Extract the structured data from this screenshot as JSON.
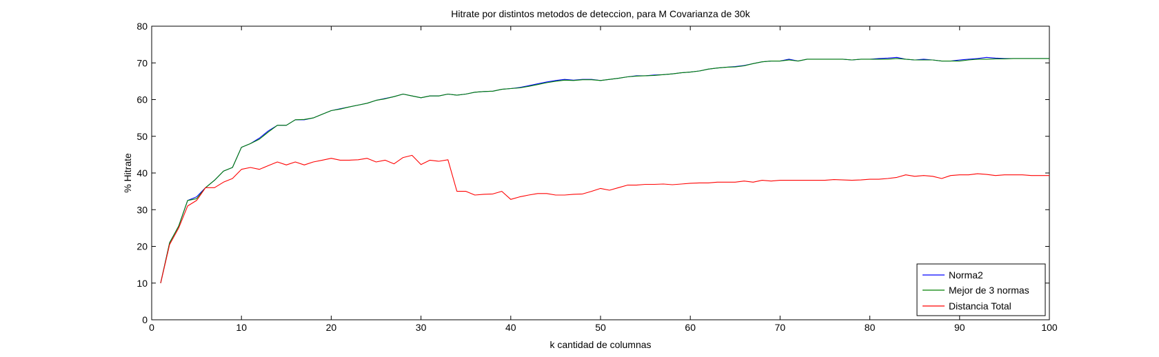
{
  "chart_data": {
    "type": "line",
    "title": "Hitrate por distintos metodos de deteccion, para M Covarianza de 30k",
    "xlabel": "k cantidad de columnas",
    "ylabel": "% Hitrate",
    "xlim": [
      0,
      100
    ],
    "ylim": [
      0,
      80
    ],
    "xticks": [
      0,
      10,
      20,
      30,
      40,
      50,
      60,
      70,
      80,
      90,
      100
    ],
    "yticks": [
      0,
      10,
      20,
      30,
      40,
      50,
      60,
      70,
      80
    ],
    "xtick_labels": [
      "0",
      "10",
      "20",
      "30",
      "40",
      "50",
      "60",
      "70",
      "80",
      "90",
      "100"
    ],
    "ytick_labels": [
      "0",
      "10",
      "20",
      "30",
      "40",
      "50",
      "60",
      "70",
      "80"
    ],
    "grid": false,
    "legend_position": "bottom-right",
    "series": [
      {
        "name": "Norma2",
        "color": "#0000ff",
        "x": [
          1,
          2,
          3,
          4,
          5,
          6,
          7,
          8,
          9,
          10,
          11,
          12,
          13,
          14,
          15,
          16,
          17,
          18,
          19,
          20,
          21,
          22,
          23,
          24,
          25,
          26,
          27,
          28,
          29,
          30,
          31,
          32,
          33,
          34,
          35,
          36,
          37,
          38,
          39,
          40,
          41,
          42,
          43,
          44,
          45,
          46,
          47,
          48,
          49,
          50,
          51,
          52,
          53,
          54,
          55,
          56,
          57,
          58,
          59,
          60,
          61,
          62,
          63,
          64,
          65,
          66,
          67,
          68,
          69,
          70,
          71,
          72,
          73,
          74,
          75,
          76,
          77,
          78,
          79,
          80,
          81,
          82,
          83,
          84,
          85,
          86,
          87,
          88,
          89,
          90,
          91,
          92,
          93,
          94,
          95,
          96,
          97,
          98,
          99,
          100
        ],
        "y": [
          10,
          21,
          25.5,
          32.5,
          33.5,
          36,
          38,
          40.5,
          41.5,
          47,
          48,
          49.5,
          51.5,
          53,
          53,
          54.5,
          54.5,
          55,
          56,
          57,
          57.5,
          58,
          58.5,
          59,
          59.8,
          60.3,
          60.8,
          61.5,
          61,
          60.5,
          61,
          61,
          61.5,
          61.2,
          61.5,
          62,
          62.2,
          62.3,
          62.8,
          63,
          63.3,
          63.8,
          64.3,
          64.8,
          65.2,
          65.5,
          65.3,
          65.5,
          65.5,
          65.2,
          65.5,
          65.8,
          66.2,
          66.5,
          66.5,
          66.7,
          66.8,
          67,
          67.3,
          67.5,
          67.8,
          68.3,
          68.6,
          68.8,
          69,
          69.3,
          69.8,
          70.3,
          70.5,
          70.5,
          71,
          70.5,
          71,
          71,
          71,
          71,
          71,
          70.8,
          71,
          71,
          71.2,
          71.3,
          71.5,
          71,
          70.8,
          71,
          70.8,
          70.5,
          70.5,
          70.8,
          71,
          71.2,
          71.5,
          71.3,
          71.2,
          71.2,
          71.2,
          71.2,
          71.2,
          71.2
        ]
      },
      {
        "name": "Mejor de 3 normas",
        "color": "#008000",
        "x": [
          1,
          2,
          3,
          4,
          5,
          6,
          7,
          8,
          9,
          10,
          11,
          12,
          13,
          14,
          15,
          16,
          17,
          18,
          19,
          20,
          21,
          22,
          23,
          24,
          25,
          26,
          27,
          28,
          29,
          30,
          31,
          32,
          33,
          34,
          35,
          36,
          37,
          38,
          39,
          40,
          41,
          42,
          43,
          44,
          45,
          46,
          47,
          48,
          49,
          50,
          51,
          52,
          53,
          54,
          55,
          56,
          57,
          58,
          59,
          60,
          61,
          62,
          63,
          64,
          65,
          66,
          67,
          68,
          69,
          70,
          71,
          72,
          73,
          74,
          75,
          76,
          77,
          78,
          79,
          80,
          81,
          82,
          83,
          84,
          85,
          86,
          87,
          88,
          89,
          90,
          91,
          92,
          93,
          94,
          95,
          96,
          97,
          98,
          99,
          100
        ],
        "y": [
          10,
          21,
          25.5,
          32.5,
          33,
          36,
          38,
          40.5,
          41.5,
          47,
          48,
          49.2,
          51.2,
          53,
          53,
          54.5,
          54.6,
          55,
          56,
          57,
          57.4,
          58,
          58.5,
          59,
          59.8,
          60.2,
          60.8,
          61.5,
          61,
          60.5,
          61,
          61,
          61.5,
          61.2,
          61.5,
          62,
          62.2,
          62.3,
          62.8,
          63,
          63.2,
          63.6,
          64.1,
          64.6,
          65,
          65.3,
          65.2,
          65.4,
          65.4,
          65.2,
          65.5,
          65.8,
          66.2,
          66.4,
          66.5,
          66.6,
          66.8,
          67,
          67.3,
          67.5,
          67.8,
          68.3,
          68.6,
          68.8,
          68.9,
          69.2,
          69.8,
          70.3,
          70.5,
          70.5,
          70.8,
          70.5,
          71,
          71,
          71,
          71,
          71,
          70.8,
          71,
          71,
          71,
          71,
          71.2,
          71,
          70.8,
          70.8,
          70.8,
          70.5,
          70.5,
          70.5,
          70.8,
          71,
          71,
          71.1,
          71.1,
          71.2,
          71.2,
          71.2,
          71.2,
          71.2
        ]
      },
      {
        "name": "Distancia Total",
        "color": "#ff0000",
        "x": [
          1,
          2,
          3,
          4,
          5,
          6,
          7,
          8,
          9,
          10,
          11,
          12,
          13,
          14,
          15,
          16,
          17,
          18,
          19,
          20,
          21,
          22,
          23,
          24,
          25,
          26,
          27,
          28,
          29,
          30,
          31,
          32,
          33,
          34,
          35,
          36,
          37,
          38,
          39,
          40,
          41,
          42,
          43,
          44,
          45,
          46,
          47,
          48,
          49,
          50,
          51,
          52,
          53,
          54,
          55,
          56,
          57,
          58,
          59,
          60,
          61,
          62,
          63,
          64,
          65,
          66,
          67,
          68,
          69,
          70,
          71,
          72,
          73,
          74,
          75,
          76,
          77,
          78,
          79,
          80,
          81,
          82,
          83,
          84,
          85,
          86,
          87,
          88,
          89,
          90,
          91,
          92,
          93,
          94,
          95,
          96,
          97,
          98,
          99,
          100
        ],
        "y": [
          10,
          20.5,
          25,
          31,
          32.5,
          36,
          36,
          37.5,
          38.5,
          41,
          41.5,
          41,
          42,
          43,
          42.2,
          43,
          42.2,
          43,
          43.5,
          44,
          43.5,
          43.5,
          43.6,
          44,
          43,
          43.5,
          42.5,
          44.2,
          44.8,
          42.3,
          43.5,
          43.2,
          43.6,
          35,
          35,
          34,
          34.2,
          34.3,
          35,
          32.8,
          33.5,
          34,
          34.4,
          34.4,
          34,
          34,
          34.2,
          34.3,
          35,
          35.8,
          35.3,
          36,
          36.7,
          36.7,
          36.9,
          36.9,
          37,
          36.8,
          37,
          37.2,
          37.3,
          37.3,
          37.5,
          37.5,
          37.5,
          37.8,
          37.5,
          38,
          37.8,
          38,
          38,
          38,
          38,
          38,
          38,
          38.2,
          38.1,
          38,
          38.1,
          38.3,
          38.3,
          38.5,
          38.8,
          39.5,
          39.1,
          39.3,
          39.1,
          38.5,
          39.3,
          39.5,
          39.5,
          39.8,
          39.6,
          39.3,
          39.5,
          39.5,
          39.5,
          39.3,
          39.3,
          39.3
        ]
      }
    ]
  }
}
